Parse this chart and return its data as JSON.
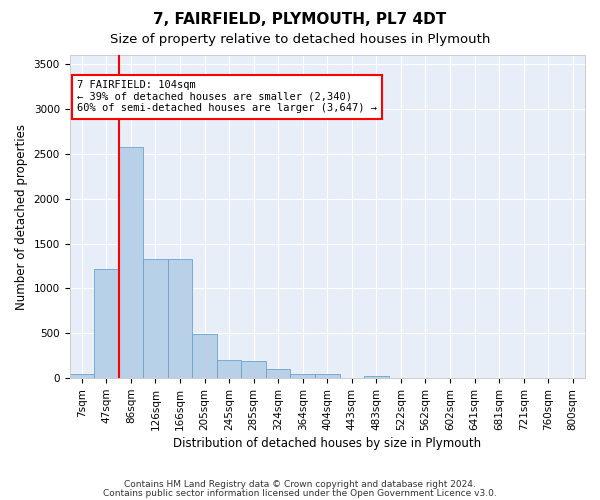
{
  "title1": "7, FAIRFIELD, PLYMOUTH, PL7 4DT",
  "title2": "Size of property relative to detached houses in Plymouth",
  "xlabel": "Distribution of detached houses by size in Plymouth",
  "ylabel": "Number of detached properties",
  "bar_color": "#b8d0e8",
  "bar_edge_color": "#6ba3cc",
  "background_color": "#e8eef8",
  "grid_color": "#ffffff",
  "categories": [
    "7sqm",
    "47sqm",
    "86sqm",
    "126sqm",
    "166sqm",
    "205sqm",
    "245sqm",
    "285sqm",
    "324sqm",
    "364sqm",
    "404sqm",
    "443sqm",
    "483sqm",
    "522sqm",
    "562sqm",
    "602sqm",
    "641sqm",
    "681sqm",
    "721sqm",
    "760sqm",
    "800sqm"
  ],
  "values": [
    50,
    1220,
    2580,
    1330,
    1330,
    490,
    200,
    195,
    100,
    50,
    45,
    0,
    30,
    0,
    0,
    0,
    0,
    0,
    0,
    0,
    0
  ],
  "ylim": [
    0,
    3600
  ],
  "yticks": [
    0,
    500,
    1000,
    1500,
    2000,
    2500,
    3000,
    3500
  ],
  "red_line_index": 2,
  "annotation_text": "7 FAIRFIELD: 104sqm\n← 39% of detached houses are smaller (2,340)\n60% of semi-detached houses are larger (3,647) →",
  "footer1": "Contains HM Land Registry data © Crown copyright and database right 2024.",
  "footer2": "Contains public sector information licensed under the Open Government Licence v3.0.",
  "title_fontsize": 11,
  "subtitle_fontsize": 9.5,
  "axis_label_fontsize": 8.5,
  "tick_fontsize": 7.5,
  "footer_fontsize": 6.5
}
